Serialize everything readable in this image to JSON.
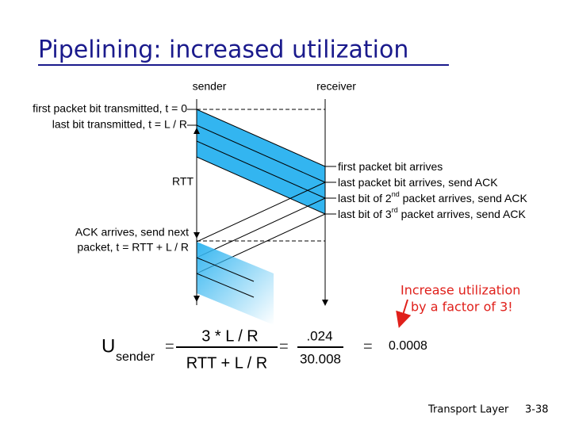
{
  "title": "Pipelining: increased utilization",
  "diagram": {
    "sender": "sender",
    "receiver": "receiver",
    "left_labels": [
      "first packet bit transmitted, t = 0",
      "last bit transmitted, t = L / R",
      "RTT"
    ],
    "ack_label": [
      "ACK arrives, send next",
      "packet, t = RTT + L / R"
    ],
    "right_labels": [
      [
        "first packet bit arrives"
      ],
      [
        "last packet bit arrives, send ACK"
      ],
      [
        "last bit of 2",
        "nd",
        " packet arrives, send ACK"
      ],
      [
        "last bit of 3",
        "rd",
        " packet arrives, send ACK"
      ]
    ]
  },
  "callout": [
    "Increase utilization",
    "by a factor of 3!"
  ],
  "formula": {
    "u": "U",
    "subscript": "sender",
    "eq1": "=",
    "numerator": "3 * L / R",
    "denominator": "RTT + L / R",
    "eq2": "=",
    "frac_num": ".024",
    "frac_den": "30.008",
    "eq3": "=",
    "result": "0.0008"
  },
  "footer": {
    "label": "Transport Layer",
    "page": "3-38"
  }
}
